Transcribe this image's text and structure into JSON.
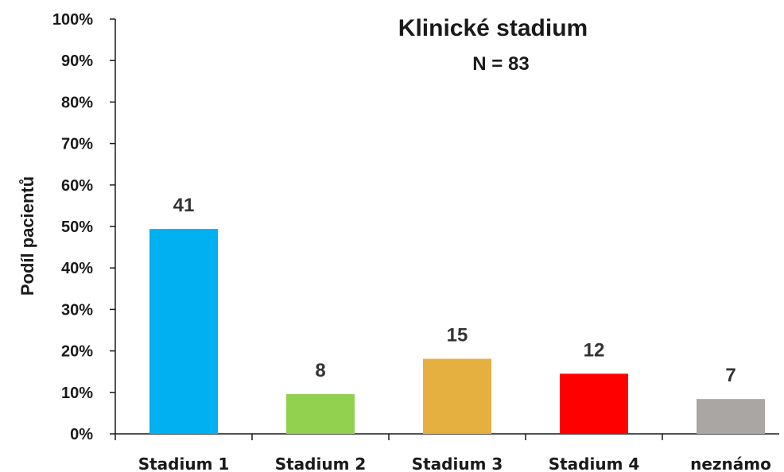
{
  "chart_data": {
    "type": "bar",
    "title": "Klinické stadium",
    "subtitle": "N = 83",
    "ylabel": "Podíl pacientů",
    "xlabel": "",
    "categories": [
      "Stadium 1",
      "Stadium 2",
      "Stadium 3",
      "Stadium 4",
      "neznámo"
    ],
    "values": [
      49.4,
      9.6,
      18.1,
      14.5,
      8.4
    ],
    "data_labels": [
      "41",
      "8",
      "15",
      "12",
      "7"
    ],
    "colors": [
      "#00B0F0",
      "#92D050",
      "#E6B040",
      "#FF0000",
      "#AAA6A4"
    ],
    "ylim": [
      0,
      100
    ],
    "yticks": [
      "0%",
      "10%",
      "20%",
      "30%",
      "40%",
      "50%",
      "60%",
      "70%",
      "80%",
      "90%",
      "100%"
    ],
    "grid": false,
    "legend": "none"
  }
}
